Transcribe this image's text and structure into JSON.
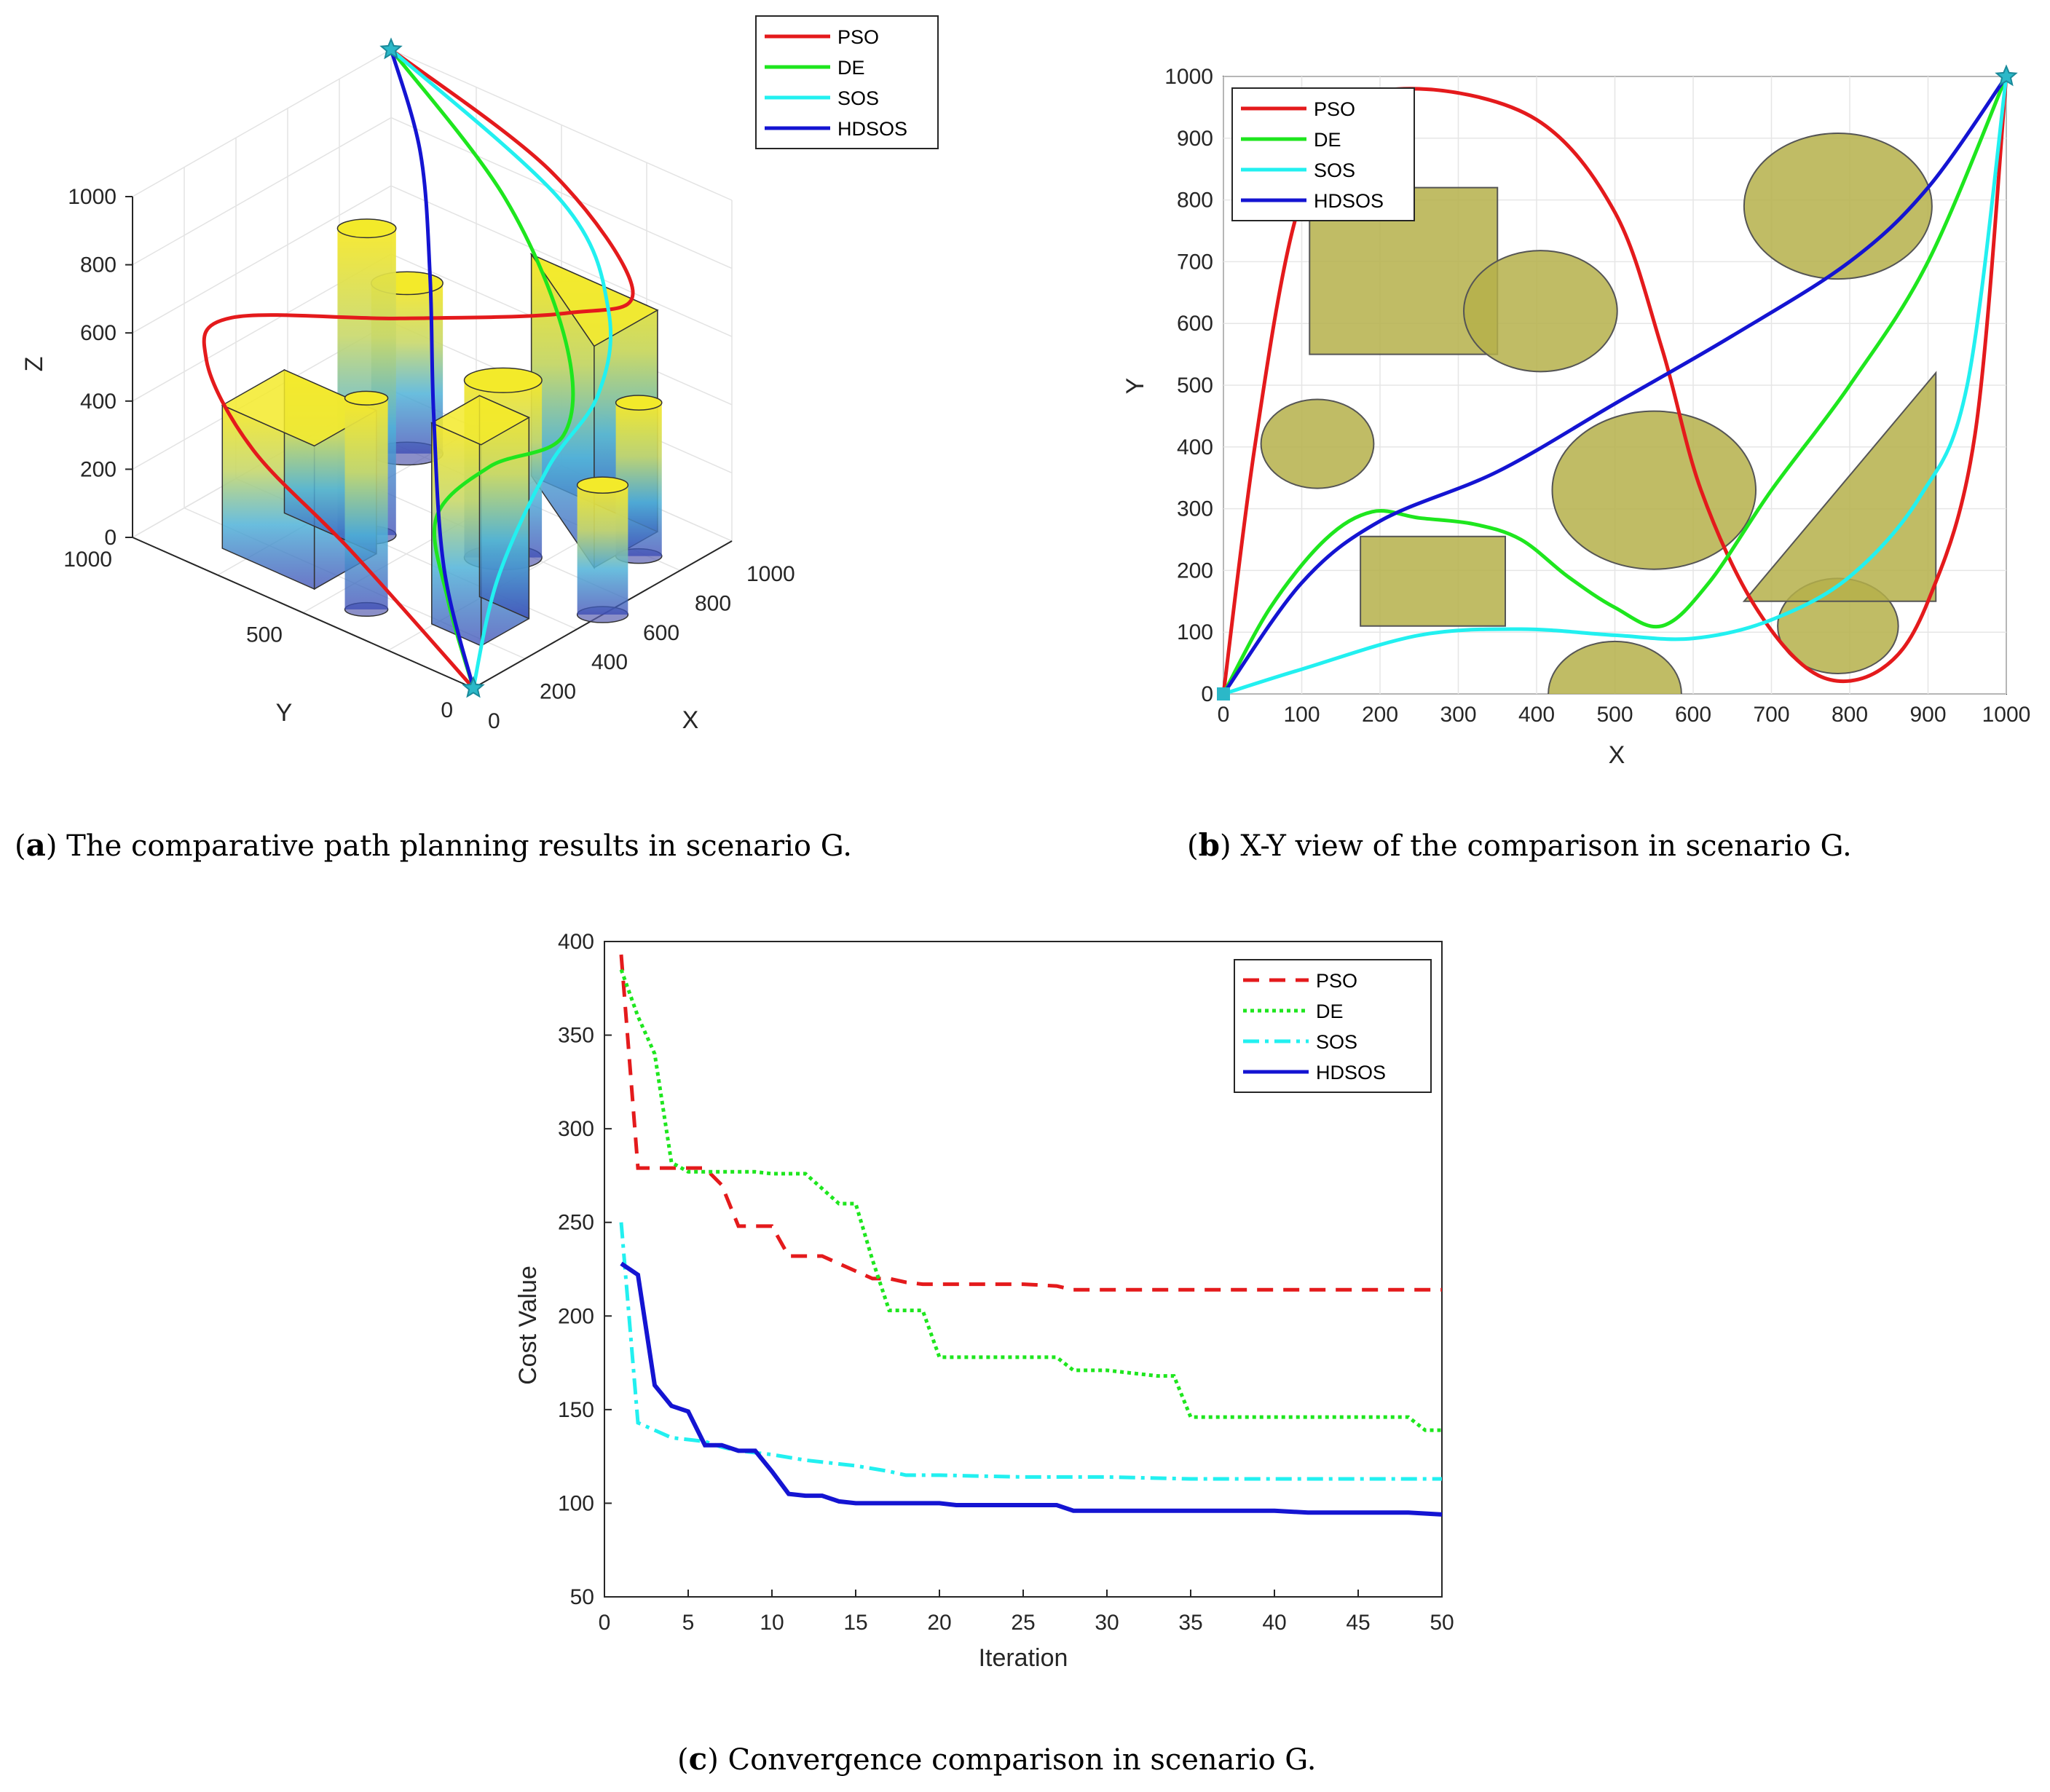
{
  "captions": {
    "a": {
      "letter": "a",
      "text": "The comparative path planning results in scenario G."
    },
    "b": {
      "letter": "b",
      "text": "X-Y view of the comparison in scenario G."
    },
    "c": {
      "letter": "c",
      "text": "Convergence comparison in scenario G."
    }
  },
  "colors": {
    "PSO": "#e41a1c",
    "DE": "#1ee61e",
    "SOS": "#22f0f0",
    "HDSOS": "#1414d2",
    "obstacle": "#b5b04a",
    "obstacle_edge": "#555555"
  },
  "chart_data": [
    {
      "type": "line",
      "title": "",
      "subtitle": "3D path planning view",
      "xlabel": "X",
      "ylabel": "Y",
      "zlabel": "Z",
      "xlim": [
        0,
        1000
      ],
      "ylim": [
        0,
        1000
      ],
      "zlim": [
        0,
        1000
      ],
      "xticks": [
        "0",
        "200",
        "400",
        "600",
        "800",
        "1000"
      ],
      "yticks": [
        "0",
        "500",
        "1000"
      ],
      "zticks": [
        "0",
        "200",
        "400",
        "600",
        "800",
        "1000"
      ],
      "legend": [
        "PSO",
        "DE",
        "SOS",
        "HDSOS"
      ],
      "legend_position": "top-right",
      "start": [
        0,
        0,
        0
      ],
      "goal": [
        1000,
        1000,
        1000
      ],
      "series": [
        {
          "name": "PSO",
          "points": [
            [
              0,
              0,
              0
            ],
            [
              30,
              380,
              220
            ],
            [
              70,
              700,
              360
            ],
            [
              180,
              920,
              480
            ],
            [
              330,
              960,
              520
            ],
            [
              560,
              640,
              560
            ],
            [
              760,
              300,
              640
            ],
            [
              880,
              200,
              700
            ],
            [
              960,
              500,
              880
            ],
            [
              1000,
              1000,
              1000
            ]
          ]
        },
        {
          "name": "DE",
          "points": [
            [
              0,
              0,
              0
            ],
            [
              60,
              120,
              180
            ],
            [
              200,
              260,
              300
            ],
            [
              380,
              240,
              380
            ],
            [
              520,
              130,
              460
            ],
            [
              700,
              260,
              600
            ],
            [
              860,
              560,
              820
            ],
            [
              1000,
              1000,
              1000
            ]
          ]
        },
        {
          "name": "SOS",
          "points": [
            [
              0,
              0,
              0
            ],
            [
              200,
              80,
              200
            ],
            [
              420,
              100,
              420
            ],
            [
              600,
              90,
              560
            ],
            [
              760,
              180,
              700
            ],
            [
              900,
              420,
              850
            ],
            [
              1000,
              1000,
              1000
            ]
          ]
        },
        {
          "name": "HDSOS",
          "points": [
            [
              0,
              0,
              0
            ],
            [
              150,
              200,
              200
            ],
            [
              400,
              420,
              450
            ],
            [
              650,
              620,
              650
            ],
            [
              850,
              800,
              850
            ],
            [
              1000,
              1000,
              1000
            ]
          ]
        }
      ]
    },
    {
      "type": "line",
      "title": "",
      "subtitle": "X-Y view",
      "xlabel": "X",
      "ylabel": "Y",
      "xlim": [
        0,
        1000
      ],
      "ylim": [
        0,
        1000
      ],
      "xticks": [
        0,
        100,
        200,
        300,
        400,
        500,
        600,
        700,
        800,
        900,
        1000
      ],
      "yticks": [
        0,
        100,
        200,
        300,
        400,
        500,
        600,
        700,
        800,
        900,
        1000
      ],
      "grid": true,
      "legend": [
        "PSO",
        "DE",
        "SOS",
        "HDSOS"
      ],
      "legend_position": "top-left",
      "obstacles": [
        {
          "shape": "rect",
          "x0": 110,
          "y0": 550,
          "x1": 350,
          "y1": 820
        },
        {
          "shape": "ellipse",
          "cx": 405,
          "cy": 620,
          "rx": 98,
          "ry": 98
        },
        {
          "shape": "ellipse",
          "cx": 785,
          "cy": 790,
          "rx": 120,
          "ry": 118
        },
        {
          "shape": "ellipse",
          "cx": 120,
          "cy": 405,
          "rx": 72,
          "ry": 72
        },
        {
          "shape": "ellipse",
          "cx": 550,
          "cy": 330,
          "rx": 130,
          "ry": 128
        },
        {
          "shape": "rect",
          "x0": 175,
          "y0": 110,
          "x1": 360,
          "y1": 255
        },
        {
          "shape": "ellipse",
          "cx": 500,
          "cy": 0,
          "rx": 85,
          "ry": 85
        },
        {
          "shape": "ellipse",
          "cx": 785,
          "cy": 110,
          "rx": 77,
          "ry": 77
        },
        {
          "shape": "triangle",
          "points": [
            [
              665,
              150
            ],
            [
              910,
              520
            ],
            [
              910,
              150
            ]
          ]
        }
      ],
      "series": [
        {
          "name": "PSO",
          "points": [
            [
              0,
              0
            ],
            [
              40,
              400
            ],
            [
              90,
              760
            ],
            [
              150,
              940
            ],
            [
              250,
              980
            ],
            [
              400,
              930
            ],
            [
              500,
              780
            ],
            [
              560,
              560
            ],
            [
              610,
              330
            ],
            [
              680,
              140
            ],
            [
              760,
              30
            ],
            [
              840,
              40
            ],
            [
              900,
              150
            ],
            [
              960,
              420
            ],
            [
              1000,
              1000
            ]
          ]
        },
        {
          "name": "DE",
          "points": [
            [
              0,
              0
            ],
            [
              60,
              140
            ],
            [
              130,
              250
            ],
            [
              190,
              295
            ],
            [
              250,
              285
            ],
            [
              320,
              275
            ],
            [
              380,
              250
            ],
            [
              440,
              190
            ],
            [
              500,
              140
            ],
            [
              560,
              110
            ],
            [
              620,
              180
            ],
            [
              700,
              330
            ],
            [
              800,
              500
            ],
            [
              900,
              700
            ],
            [
              1000,
              1000
            ]
          ]
        },
        {
          "name": "SOS",
          "points": [
            [
              0,
              0
            ],
            [
              100,
              40
            ],
            [
              250,
              95
            ],
            [
              380,
              105
            ],
            [
              500,
              95
            ],
            [
              600,
              90
            ],
            [
              700,
              120
            ],
            [
              800,
              190
            ],
            [
              890,
              320
            ],
            [
              950,
              500
            ],
            [
              1000,
              1000
            ]
          ]
        },
        {
          "name": "HDSOS",
          "points": [
            [
              0,
              0
            ],
            [
              100,
              180
            ],
            [
              200,
              280
            ],
            [
              350,
              360
            ],
            [
              500,
              470
            ],
            [
              650,
              580
            ],
            [
              800,
              700
            ],
            [
              900,
              820
            ],
            [
              1000,
              1000
            ]
          ]
        }
      ]
    },
    {
      "type": "line",
      "title": "",
      "xlabel": "Iteration",
      "ylabel": "Cost Value",
      "xlim": [
        0,
        50
      ],
      "ylim": [
        50,
        400
      ],
      "xticks": [
        0,
        5,
        10,
        15,
        20,
        25,
        30,
        35,
        40,
        45,
        50
      ],
      "yticks": [
        50,
        100,
        150,
        200,
        250,
        300,
        350,
        400
      ],
      "legend": [
        "PSO",
        "DE",
        "SOS",
        "HDSOS"
      ],
      "legend_position": "top-right",
      "series": [
        {
          "name": "PSO",
          "style": "dashed",
          "x": [
            1,
            2,
            3,
            4,
            5,
            6,
            7,
            8,
            9,
            10,
            11,
            12,
            13,
            14,
            15,
            16,
            17,
            18,
            19,
            20,
            25,
            27,
            28,
            30,
            35,
            40,
            45,
            50
          ],
          "values": [
            393,
            279,
            279,
            279,
            279,
            279,
            270,
            248,
            248,
            248,
            232,
            232,
            232,
            228,
            224,
            220,
            220,
            218,
            217,
            217,
            217,
            216,
            214,
            214,
            214,
            214,
            214,
            214
          ]
        },
        {
          "name": "DE",
          "style": "dotted",
          "x": [
            1,
            2,
            3,
            4,
            5,
            6,
            7,
            8,
            9,
            10,
            11,
            12,
            13,
            14,
            15,
            16,
            17,
            18,
            19,
            20,
            25,
            27,
            28,
            30,
            33,
            34,
            35,
            40,
            45,
            48,
            49,
            50
          ],
          "values": [
            385,
            360,
            340,
            282,
            277,
            277,
            277,
            277,
            277,
            276,
            276,
            276,
            268,
            260,
            260,
            230,
            203,
            203,
            203,
            178,
            178,
            178,
            171,
            171,
            168,
            168,
            146,
            146,
            146,
            146,
            139,
            139
          ]
        },
        {
          "name": "SOS",
          "style": "dashdot",
          "x": [
            1,
            2,
            3,
            4,
            5,
            6,
            7,
            8,
            9,
            10,
            12,
            15,
            17,
            18,
            20,
            25,
            30,
            35,
            40,
            45,
            50
          ],
          "values": [
            250,
            143,
            139,
            135,
            134,
            133,
            130,
            128,
            127,
            126,
            123,
            120,
            117,
            115,
            115,
            114,
            114,
            113,
            113,
            113,
            113
          ]
        },
        {
          "name": "HDSOS",
          "style": "solid",
          "x": [
            1,
            2,
            3,
            4,
            5,
            6,
            7,
            8,
            9,
            10,
            11,
            12,
            13,
            14,
            15,
            16,
            17,
            18,
            19,
            20,
            21,
            25,
            27,
            28,
            30,
            35,
            40,
            42,
            45,
            48,
            50
          ],
          "values": [
            228,
            222,
            163,
            152,
            149,
            131,
            131,
            128,
            128,
            117,
            105,
            104,
            104,
            101,
            100,
            100,
            100,
            100,
            100,
            100,
            99,
            99,
            99,
            96,
            96,
            96,
            96,
            95,
            95,
            95,
            94
          ]
        }
      ]
    }
  ]
}
